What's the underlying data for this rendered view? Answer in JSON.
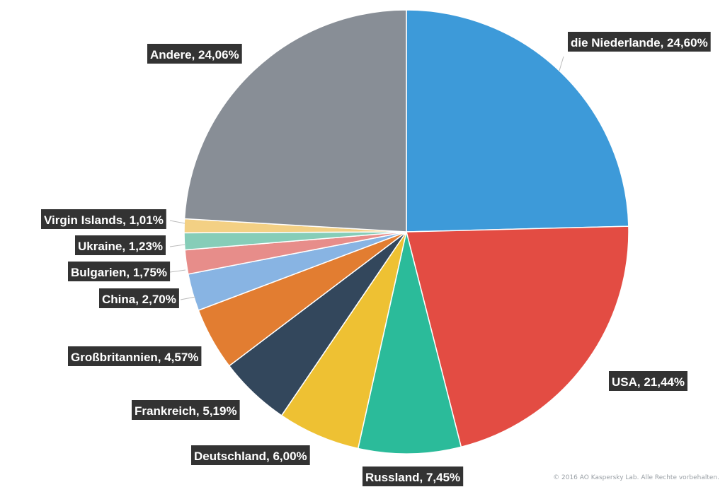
{
  "chart_data": {
    "type": "pie",
    "title": "",
    "start_angle_deg": 0,
    "direction": "clockwise",
    "slices": [
      {
        "label": "die Niederlande, 24,60%",
        "value": 24.6,
        "color": "#3d9ad9"
      },
      {
        "label": "USA, 21,44%",
        "value": 21.44,
        "color": "#e34c43"
      },
      {
        "label": "Russland, 7,45%",
        "value": 7.45,
        "color": "#2bbb9a"
      },
      {
        "label": "Deutschland, 6,00%",
        "value": 6.0,
        "color": "#eec133"
      },
      {
        "label": "Frankreich, 5,19%",
        "value": 5.19,
        "color": "#33475c"
      },
      {
        "label": "Großbritannien, 4,57%",
        "value": 4.57,
        "color": "#e27d31"
      },
      {
        "label": "China, 2,70%",
        "value": 2.7,
        "color": "#88b4e3"
      },
      {
        "label": "Bulgarien, 1,75%",
        "value": 1.75,
        "color": "#e78d8a"
      },
      {
        "label": "Ukraine, 1,23%",
        "value": 1.23,
        "color": "#86cdb8"
      },
      {
        "label": "Virgin Islands, 1,01%",
        "value": 1.01,
        "color": "#f3d084"
      },
      {
        "label": "Andere, 24,06%",
        "value": 24.06,
        "color": "#888e96"
      }
    ],
    "label_style": {
      "background": "#333333",
      "text_color": "#ffffff"
    }
  },
  "footer": {
    "copyright": "© 2016 AO Kaspersky Lab. Alle Rechte vorbehalten."
  }
}
